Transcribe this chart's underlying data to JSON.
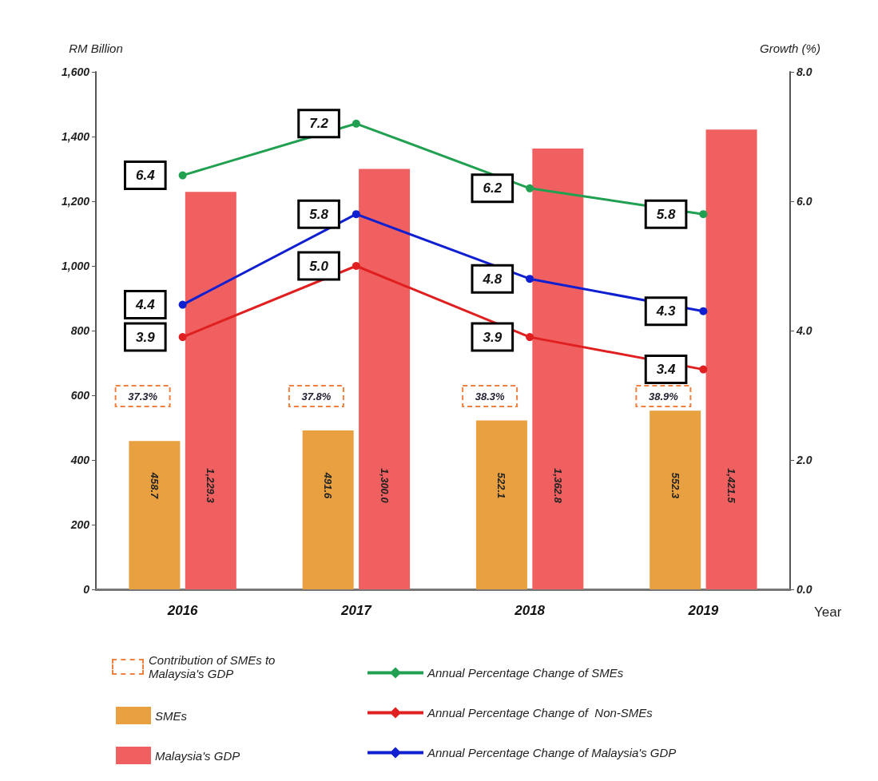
{
  "chart_data": {
    "type": "bar",
    "categories": [
      "2016",
      "2017",
      "2018",
      "2019"
    ],
    "xlabel": "Year",
    "ylabel": "RM Billion",
    "y2label": "Growth (%)",
    "ylim": [
      0,
      1600
    ],
    "yticks": [
      0,
      {
        "value": 200,
        "label": "200"
      },
      {
        "value": 400,
        "label": "400"
      },
      {
        "value": 600,
        "label": "600"
      },
      {
        "value": 800,
        "label": "800"
      },
      {
        "value": 1000,
        "label": "1,000"
      },
      {
        "value": 1200,
        "label": "1,200"
      },
      {
        "value": 1400,
        "label": "1,400"
      },
      {
        "value": 1600,
        "label": "1,600"
      }
    ],
    "y2lim": [
      0,
      8
    ],
    "y2ticks": [
      {
        "value": 0,
        "label": "0.0"
      },
      {
        "value": 2,
        "label": "2.0"
      },
      {
        "value": 4,
        "label": "4.0"
      },
      {
        "value": 6,
        "label": "6.0"
      },
      {
        "value": 8,
        "label": "8.0"
      }
    ],
    "annotations": [
      {
        "text": "37.3%",
        "x": "2016"
      },
      {
        "text": "37.8%",
        "x": "2017"
      },
      {
        "text": "38.3%",
        "x": "2018"
      },
      {
        "text": "38.9%",
        "x": "2019"
      },
      "Contribution of SMEs to Malaysia's GDP"
    ],
    "legend": "bottom",
    "data_labels": true,
    "marker": "circle",
    "series": [
      {
        "name": "SMEs",
        "color": "#e8a040",
        "values": [
          458.7,
          491.6,
          522.1,
          552.3
        ]
      },
      {
        "name": "Malaysia's GDP",
        "color": "#f06060",
        "values": [
          1229.3,
          1300.0,
          1362.8,
          1421.5
        ],
        "value_labels": [
          "1,229.3",
          "1,300.0",
          "1,362.8",
          "1,421.5"
        ]
      },
      {
        "name": "Annual Percentage Change of SMEs",
        "type": "line",
        "axis": "y2",
        "color": "#20a050",
        "values": [
          6.4,
          7.2,
          6.2,
          5.8
        ]
      },
      {
        "name": "Annual Percentage Change of  Non-SMEs",
        "type": "line",
        "axis": "y2",
        "color": "#e02020",
        "values": [
          3.9,
          5.0,
          3.9,
          3.4
        ],
        "value_labels": [
          "3.9",
          "5.0",
          "3.9",
          "3.4"
        ]
      },
      {
        "name": "Annual Percentage Change of Malaysia's GDP",
        "type": "line",
        "axis": "y2",
        "color": "#1020d0",
        "values": [
          4.4,
          5.8,
          4.8,
          4.3
        ]
      }
    ]
  }
}
